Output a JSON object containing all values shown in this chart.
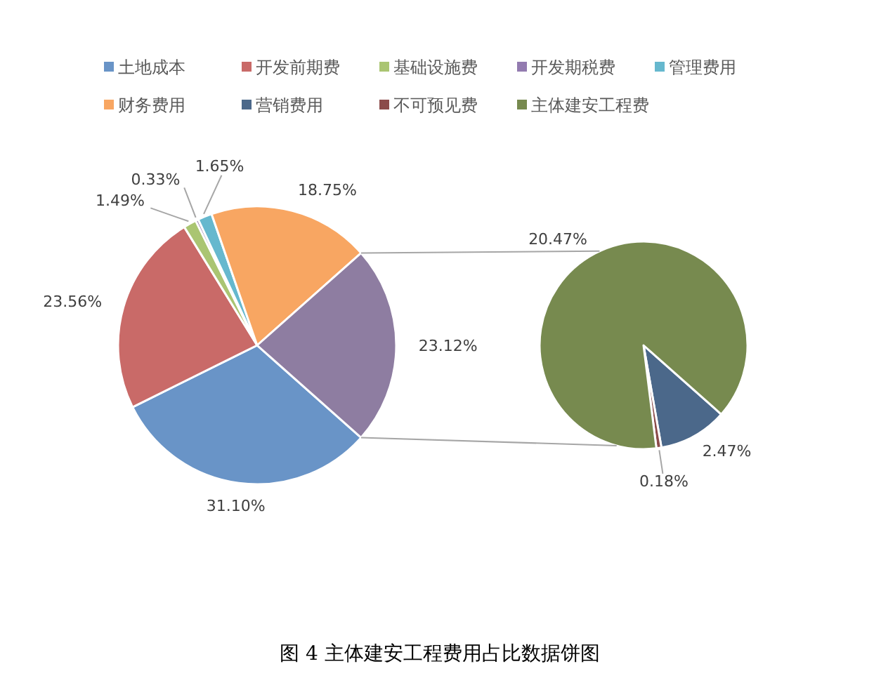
{
  "chart_data": [
    {
      "type": "pie",
      "title": "图 4 主体建安工程费用占比数据饼图",
      "categories": [
        "土地成本",
        "开发前期费",
        "基础设施费",
        "开发期税费",
        "管理费用",
        "财务费用",
        null
      ],
      "values": [
        31.1,
        23.56,
        1.49,
        0.33,
        1.65,
        18.75,
        23.12
      ],
      "value_labels": [
        "31.10%",
        "23.56%",
        "1.49%",
        "0.33%",
        "1.65%",
        "18.75%",
        "23.12%"
      ],
      "colors": [
        "#4f81bd",
        "#c0504d",
        "#9bbb59",
        "#8064a2",
        "#4bacc6",
        "#f79646",
        "#7a6690"
      ],
      "legend": "top"
    },
    {
      "type": "pie",
      "categories": [
        "营销费用",
        "不可预见费",
        "主体建安工程费"
      ],
      "values": [
        2.47,
        0.18,
        20.47
      ],
      "value_labels": [
        "2.47%",
        "0.18%",
        "20.47%"
      ],
      "colors": [
        "#2c4d75",
        "#772c2a",
        "#5f7530"
      ],
      "legend": "top"
    }
  ]
}
